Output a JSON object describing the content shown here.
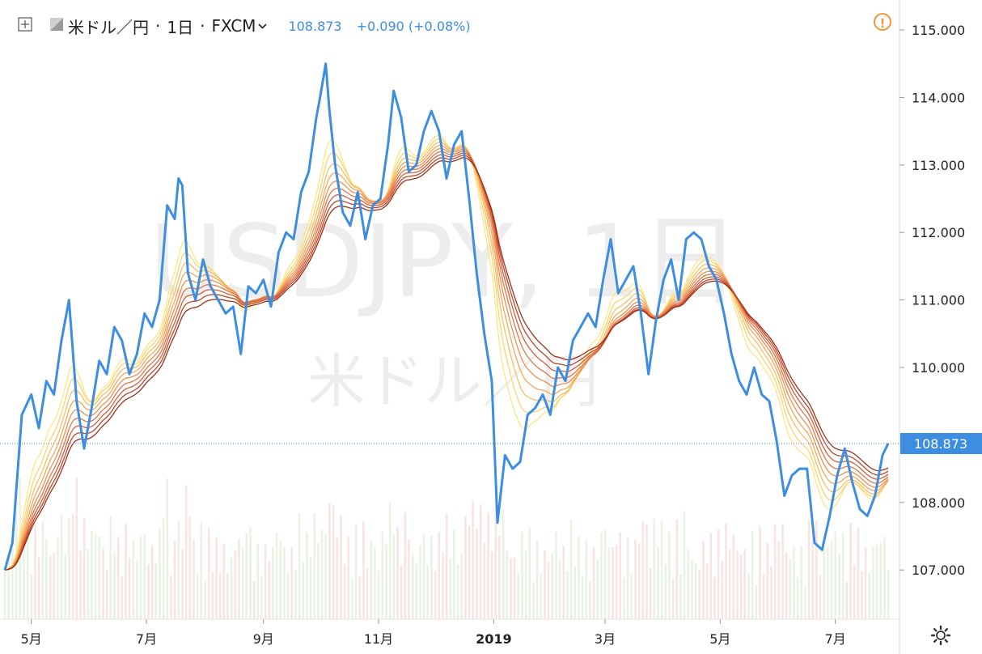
{
  "header": {
    "symbol": "米ドル／円",
    "interval": "1日",
    "source": "FXCM",
    "last_price": "108.873",
    "change": "+0.090 (+0.08%)"
  },
  "watermark": {
    "line1": "USDJPY, 1日",
    "line2": "米ドル／円"
  },
  "icons": {
    "crosshair": "crosshair-icon",
    "color_swatch": "swatch-icon",
    "dropdown": "chevron-down-icon",
    "warning": "warning-icon",
    "settings": "gear-icon"
  },
  "colors": {
    "price_line": "#3d8ee0",
    "ribbon": [
      "#fde585",
      "#fbd371",
      "#f8be62",
      "#f5a659",
      "#ee8e50",
      "#e37546",
      "#d35e3a",
      "#bc4629",
      "#9e3119"
    ],
    "volume_up": "#e9f2e3",
    "volume_down": "#f7e4e3",
    "last_price_tag": "#3d8ee0"
  },
  "chart_data": {
    "type": "line",
    "title": "USDJPY, 1日",
    "y_axis": {
      "ticks": [
        "115.000",
        "114.000",
        "113.000",
        "112.000",
        "111.000",
        "110.000",
        "108.000",
        "107.000"
      ],
      "range": [
        106.3,
        115.4
      ],
      "last_value_label": "108.873"
    },
    "x_axis": {
      "ticks": [
        "5月",
        "7月",
        "9月",
        "11月",
        "2019",
        "3月",
        "5月",
        "7月"
      ],
      "tick_dates": [
        "2018-05-01",
        "2018-07-01",
        "2018-09-01",
        "2018-11-01",
        "2019-01-01",
        "2019-03-01",
        "2019-05-01",
        "2019-07-01"
      ],
      "range": [
        "2018-04-17",
        "2019-07-29"
      ]
    },
    "series": [
      {
        "name": "USDJPY",
        "points": [
          [
            "2018-04-17",
            107.0
          ],
          [
            "2018-04-21",
            107.4
          ],
          [
            "2018-04-26",
            109.3
          ],
          [
            "2018-05-01",
            109.6
          ],
          [
            "2018-05-05",
            109.1
          ],
          [
            "2018-05-09",
            109.8
          ],
          [
            "2018-05-13",
            109.6
          ],
          [
            "2018-05-17",
            110.4
          ],
          [
            "2018-05-21",
            111.0
          ],
          [
            "2018-05-25",
            109.5
          ],
          [
            "2018-05-29",
            108.8
          ],
          [
            "2018-06-02",
            109.4
          ],
          [
            "2018-06-06",
            110.1
          ],
          [
            "2018-06-10",
            109.9
          ],
          [
            "2018-06-14",
            110.6
          ],
          [
            "2018-06-18",
            110.4
          ],
          [
            "2018-06-22",
            109.9
          ],
          [
            "2018-06-26",
            110.2
          ],
          [
            "2018-06-30",
            110.8
          ],
          [
            "2018-07-04",
            110.6
          ],
          [
            "2018-07-08",
            111.0
          ],
          [
            "2018-07-12",
            112.4
          ],
          [
            "2018-07-16",
            112.2
          ],
          [
            "2018-07-18",
            112.8
          ],
          [
            "2018-07-20",
            112.7
          ],
          [
            "2018-07-23",
            111.4
          ],
          [
            "2018-07-27",
            111.0
          ],
          [
            "2018-07-31",
            111.6
          ],
          [
            "2018-08-04",
            111.2
          ],
          [
            "2018-08-08",
            111.0
          ],
          [
            "2018-08-12",
            110.8
          ],
          [
            "2018-08-16",
            110.9
          ],
          [
            "2018-08-20",
            110.2
          ],
          [
            "2018-08-24",
            111.2
          ],
          [
            "2018-08-28",
            111.1
          ],
          [
            "2018-09-01",
            111.3
          ],
          [
            "2018-09-05",
            110.9
          ],
          [
            "2018-09-09",
            111.7
          ],
          [
            "2018-09-13",
            112.0
          ],
          [
            "2018-09-17",
            111.9
          ],
          [
            "2018-09-21",
            112.6
          ],
          [
            "2018-09-25",
            112.9
          ],
          [
            "2018-09-29",
            113.7
          ],
          [
            "2018-10-01",
            114.0
          ],
          [
            "2018-10-04",
            114.5
          ],
          [
            "2018-10-06",
            113.8
          ],
          [
            "2018-10-09",
            113.0
          ],
          [
            "2018-10-13",
            112.3
          ],
          [
            "2018-10-17",
            112.1
          ],
          [
            "2018-10-21",
            112.6
          ],
          [
            "2018-10-25",
            111.9
          ],
          [
            "2018-10-29",
            112.4
          ],
          [
            "2018-11-02",
            112.5
          ],
          [
            "2018-11-06",
            113.3
          ],
          [
            "2018-11-09",
            114.1
          ],
          [
            "2018-11-13",
            113.7
          ],
          [
            "2018-11-17",
            112.9
          ],
          [
            "2018-11-21",
            113.0
          ],
          [
            "2018-11-25",
            113.5
          ],
          [
            "2018-11-29",
            113.8
          ],
          [
            "2018-12-03",
            113.5
          ],
          [
            "2018-12-07",
            112.8
          ],
          [
            "2018-12-11",
            113.3
          ],
          [
            "2018-12-15",
            113.5
          ],
          [
            "2018-12-19",
            112.5
          ],
          [
            "2018-12-23",
            111.4
          ],
          [
            "2018-12-27",
            110.5
          ],
          [
            "2018-12-31",
            109.8
          ],
          [
            "2019-01-03",
            107.7
          ],
          [
            "2019-01-07",
            108.7
          ],
          [
            "2019-01-11",
            108.5
          ],
          [
            "2019-01-15",
            108.6
          ],
          [
            "2019-01-19",
            109.3
          ],
          [
            "2019-01-23",
            109.4
          ],
          [
            "2019-01-27",
            109.6
          ],
          [
            "2019-01-31",
            109.3
          ],
          [
            "2019-02-04",
            110.0
          ],
          [
            "2019-02-08",
            109.8
          ],
          [
            "2019-02-12",
            110.4
          ],
          [
            "2019-02-16",
            110.6
          ],
          [
            "2019-02-20",
            110.8
          ],
          [
            "2019-02-24",
            110.6
          ],
          [
            "2019-02-28",
            111.3
          ],
          [
            "2019-03-04",
            111.9
          ],
          [
            "2019-03-08",
            111.1
          ],
          [
            "2019-03-12",
            111.3
          ],
          [
            "2019-03-16",
            111.5
          ],
          [
            "2019-03-20",
            110.8
          ],
          [
            "2019-03-24",
            109.9
          ],
          [
            "2019-03-28",
            110.7
          ],
          [
            "2019-04-01",
            111.3
          ],
          [
            "2019-04-05",
            111.6
          ],
          [
            "2019-04-09",
            111.0
          ],
          [
            "2019-04-13",
            111.9
          ],
          [
            "2019-04-17",
            112.0
          ],
          [
            "2019-04-21",
            111.9
          ],
          [
            "2019-04-25",
            111.5
          ],
          [
            "2019-04-29",
            111.3
          ],
          [
            "2019-05-03",
            110.8
          ],
          [
            "2019-05-07",
            110.2
          ],
          [
            "2019-05-11",
            109.8
          ],
          [
            "2019-05-15",
            109.6
          ],
          [
            "2019-05-19",
            110.0
          ],
          [
            "2019-05-23",
            109.6
          ],
          [
            "2019-05-27",
            109.5
          ],
          [
            "2019-05-31",
            108.9
          ],
          [
            "2019-06-04",
            108.1
          ],
          [
            "2019-06-08",
            108.4
          ],
          [
            "2019-06-12",
            108.5
          ],
          [
            "2019-06-16",
            108.5
          ],
          [
            "2019-06-20",
            107.4
          ],
          [
            "2019-06-24",
            107.3
          ],
          [
            "2019-06-28",
            107.8
          ],
          [
            "2019-07-02",
            108.4
          ],
          [
            "2019-07-06",
            108.8
          ],
          [
            "2019-07-10",
            108.3
          ],
          [
            "2019-07-14",
            107.9
          ],
          [
            "2019-07-18",
            107.8
          ],
          [
            "2019-07-22",
            108.1
          ],
          [
            "2019-07-26",
            108.7
          ],
          [
            "2019-07-29",
            108.873
          ]
        ]
      }
    ]
  }
}
